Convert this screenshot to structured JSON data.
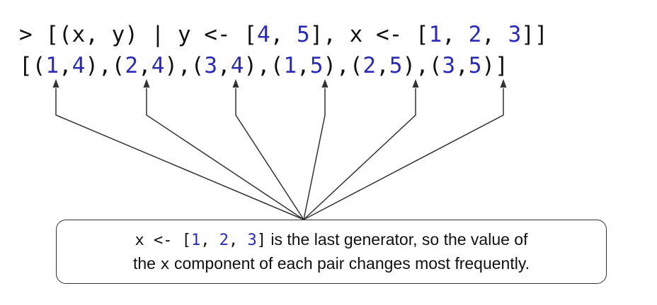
{
  "code": {
    "line1": [
      {
        "t": "> [(x, y) | y <- [",
        "c": "plain"
      },
      {
        "t": "4",
        "c": "num"
      },
      {
        "t": ", ",
        "c": "plain"
      },
      {
        "t": "5",
        "c": "num"
      },
      {
        "t": "], x <- [",
        "c": "plain"
      },
      {
        "t": "1",
        "c": "num"
      },
      {
        "t": ", ",
        "c": "plain"
      },
      {
        "t": "2",
        "c": "num"
      },
      {
        "t": ", ",
        "c": "plain"
      },
      {
        "t": "3",
        "c": "num"
      },
      {
        "t": "]]",
        "c": "plain"
      }
    ],
    "line2": [
      {
        "t": "[(",
        "c": "plain"
      },
      {
        "t": "1",
        "c": "num"
      },
      {
        "t": ",",
        "c": "plain"
      },
      {
        "t": "4",
        "c": "num"
      },
      {
        "t": "),(",
        "c": "plain"
      },
      {
        "t": "2",
        "c": "num"
      },
      {
        "t": ",",
        "c": "plain"
      },
      {
        "t": "4",
        "c": "num"
      },
      {
        "t": "),(",
        "c": "plain"
      },
      {
        "t": "3",
        "c": "num"
      },
      {
        "t": ",",
        "c": "plain"
      },
      {
        "t": "4",
        "c": "num"
      },
      {
        "t": "),(",
        "c": "plain"
      },
      {
        "t": "1",
        "c": "num"
      },
      {
        "t": ",",
        "c": "plain"
      },
      {
        "t": "5",
        "c": "num"
      },
      {
        "t": "),(",
        "c": "plain"
      },
      {
        "t": "2",
        "c": "num"
      },
      {
        "t": ",",
        "c": "plain"
      },
      {
        "t": "5",
        "c": "num"
      },
      {
        "t": "),(",
        "c": "plain"
      },
      {
        "t": "3",
        "c": "num"
      },
      {
        "t": ",",
        "c": "plain"
      },
      {
        "t": "5",
        "c": "num"
      },
      {
        "t": ")]",
        "c": "plain"
      }
    ]
  },
  "callout": {
    "code_prefix": "x <- [",
    "n1": "1",
    "sep1": ", ",
    "n2": "2",
    "sep2": ", ",
    "n3": "3",
    "code_suffix": "]",
    "text_line1": " is the last generator, so the value of",
    "text_line2_pre": "the ",
    "var": "x",
    "text_line2_post": " component of each pair changes most frequently."
  },
  "colors": {
    "number": "#2a2ab8",
    "text": "#111111",
    "line": "#333333"
  }
}
